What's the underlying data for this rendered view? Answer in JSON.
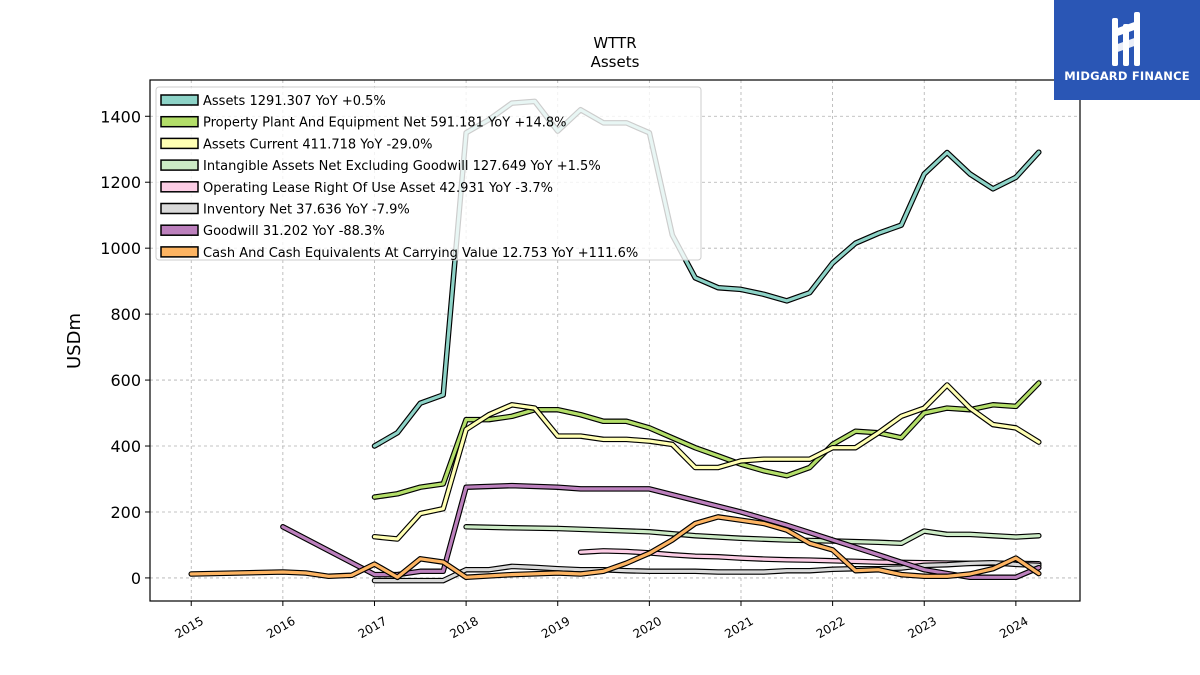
{
  "brand": {
    "name": "MIDGARD FINANCE",
    "bg_color": "#2a56b5"
  },
  "chart_data": {
    "type": "line",
    "title": "WTTR",
    "subtitle": "Assets",
    "ylabel": "USDm",
    "xlabel": "",
    "xlim": [
      2014.55,
      2024.7
    ],
    "ylim": [
      -70,
      1510
    ],
    "x_ticks": [
      2015,
      2016,
      2017,
      2018,
      2019,
      2020,
      2021,
      2022,
      2023,
      2024
    ],
    "y_ticks": [
      0,
      200,
      400,
      600,
      800,
      1000,
      1200,
      1400
    ],
    "grid": true,
    "legend_position": "top-left",
    "series": [
      {
        "name": "Assets  1291.307 YoY +0.5%",
        "color": "#8dd3c7",
        "x": [
          2017.0,
          2017.25,
          2017.5,
          2017.75,
          2018.0,
          2018.25,
          2018.5,
          2018.75,
          2019.0,
          2019.25,
          2019.5,
          2019.75,
          2020.0,
          2020.25,
          2020.5,
          2020.75,
          2021.0,
          2021.25,
          2021.5,
          2021.75,
          2022.0,
          2022.25,
          2022.5,
          2022.75,
          2023.0,
          2023.25,
          2023.5,
          2023.75,
          2024.0,
          2024.25
        ],
        "y": [
          400,
          440,
          530,
          555,
          1350,
          1390,
          1440,
          1445,
          1355,
          1420,
          1380,
          1380,
          1350,
          1040,
          910,
          880,
          875,
          860,
          840,
          865,
          955,
          1015,
          1045,
          1070,
          1225,
          1290,
          1225,
          1180,
          1215,
          1291
        ]
      },
      {
        "name": "Property Plant And Equipment Net  591.181 YoY +14.8%",
        "color": "#b3de69",
        "x": [
          2017.0,
          2017.25,
          2017.5,
          2017.75,
          2018.0,
          2018.25,
          2018.5,
          2018.75,
          2019.0,
          2019.25,
          2019.5,
          2019.75,
          2020.0,
          2020.25,
          2020.5,
          2020.75,
          2021.0,
          2021.25,
          2021.5,
          2021.75,
          2022.0,
          2022.25,
          2022.5,
          2022.75,
          2023.0,
          2023.25,
          2023.5,
          2023.75,
          2024.0,
          2024.25
        ],
        "y": [
          245,
          255,
          275,
          285,
          480,
          480,
          490,
          510,
          510,
          495,
          475,
          475,
          455,
          425,
          395,
          370,
          345,
          325,
          310,
          335,
          405,
          445,
          440,
          425,
          500,
          515,
          510,
          525,
          520,
          591
        ]
      },
      {
        "name": "Assets Current  411.718 YoY -29.0%",
        "color": "#ffffb3",
        "x": [
          2017.0,
          2017.25,
          2017.5,
          2017.75,
          2018.0,
          2018.25,
          2018.5,
          2018.75,
          2019.0,
          2019.25,
          2019.5,
          2019.75,
          2020.0,
          2020.25,
          2020.5,
          2020.75,
          2021.0,
          2021.25,
          2021.5,
          2021.75,
          2022.0,
          2022.25,
          2022.5,
          2022.75,
          2023.0,
          2023.25,
          2023.5,
          2023.75,
          2024.0,
          2024.25
        ],
        "y": [
          125,
          118,
          195,
          210,
          450,
          495,
          525,
          515,
          430,
          430,
          420,
          420,
          415,
          405,
          335,
          335,
          355,
          360,
          360,
          360,
          395,
          395,
          440,
          490,
          515,
          585,
          515,
          465,
          455,
          412
        ]
      },
      {
        "name": "Intangible Assets Net Excluding Goodwill  127.649 YoY +1.5%",
        "color": "#ccebc5",
        "x": [
          2018.0,
          2018.5,
          2019.0,
          2019.5,
          2020.0,
          2020.5,
          2021.0,
          2021.5,
          2022.0,
          2022.5,
          2022.75,
          2023.0,
          2023.25,
          2023.5,
          2023.75,
          2024.0,
          2024.25
        ],
        "y": [
          155,
          152,
          150,
          145,
          140,
          128,
          120,
          115,
          112,
          108,
          105,
          142,
          132,
          132,
          128,
          124,
          128
        ]
      },
      {
        "name": "Operating Lease Right Of Use Asset  42.931 YoY -3.7%",
        "color": "#fccde5",
        "x": [
          2019.25,
          2019.5,
          2019.75,
          2020.0,
          2020.25,
          2020.5,
          2020.75,
          2021.0,
          2021.25,
          2021.5,
          2021.75,
          2022.0,
          2022.25,
          2022.5,
          2022.75,
          2023.0,
          2023.25,
          2023.5,
          2023.75,
          2024.0,
          2024.25
        ],
        "y": [
          78,
          82,
          80,
          76,
          70,
          66,
          64,
          60,
          57,
          55,
          54,
          52,
          50,
          48,
          47,
          46,
          45,
          44,
          44,
          44,
          43
        ]
      },
      {
        "name": "Inventory Net  37.636 YoY -7.9%",
        "color": "#d9d9d9",
        "x": [
          2017.0,
          2017.25,
          2017.5,
          2017.75,
          2018.0,
          2018.25,
          2018.5,
          2018.75,
          2019.0,
          2019.25,
          2019.5,
          2019.75,
          2020.0,
          2020.25,
          2020.5,
          2020.75,
          2021.0,
          2021.25,
          2021.5,
          2021.75,
          2022.0,
          2022.25,
          2022.5,
          2022.75,
          2023.0,
          2023.25,
          2023.5,
          2023.75,
          2024.0,
          2024.25
        ],
        "y": [
          -8,
          -8,
          -8,
          -8,
          25,
          25,
          35,
          32,
          28,
          25,
          25,
          22,
          20,
          20,
          20,
          18,
          18,
          18,
          22,
          22,
          26,
          28,
          28,
          30,
          38,
          40,
          44,
          46,
          41,
          38
        ]
      },
      {
        "name": "Goodwill  31.202 YoY -88.3%",
        "color": "#bc80bd",
        "x": [
          2016.0,
          2017.0,
          2017.25,
          2017.5,
          2017.75,
          2018.0,
          2018.5,
          2019.0,
          2019.25,
          2019.5,
          2019.75,
          2020.0,
          2021.0,
          2021.5,
          2022.0,
          2022.5,
          2023.0,
          2023.5,
          2024.0,
          2024.25
        ],
        "y": [
          155,
          10,
          10,
          20,
          20,
          275,
          280,
          275,
          270,
          270,
          270,
          270,
          200,
          160,
          115,
          70,
          25,
          2,
          2,
          31
        ]
      },
      {
        "name": "Cash And Cash Equivalents At Carrying Value  12.753 YoY +111.6%",
        "color": "#fdb462",
        "x": [
          2015.0,
          2016.0,
          2016.25,
          2016.5,
          2016.75,
          2017.0,
          2017.25,
          2017.5,
          2017.75,
          2018.0,
          2018.5,
          2019.0,
          2019.25,
          2019.5,
          2019.75,
          2020.0,
          2020.25,
          2020.5,
          2020.75,
          2021.0,
          2021.25,
          2021.5,
          2021.75,
          2022.0,
          2022.25,
          2022.5,
          2022.75,
          2023.0,
          2023.25,
          2023.5,
          2023.75,
          2024.0,
          2024.25
        ],
        "y": [
          12,
          18,
          15,
          5,
          8,
          42,
          2,
          58,
          48,
          2,
          10,
          15,
          12,
          20,
          45,
          75,
          115,
          165,
          185,
          175,
          165,
          145,
          105,
          85,
          22,
          25,
          10,
          5,
          5,
          12,
          28,
          60,
          13
        ]
      }
    ]
  }
}
